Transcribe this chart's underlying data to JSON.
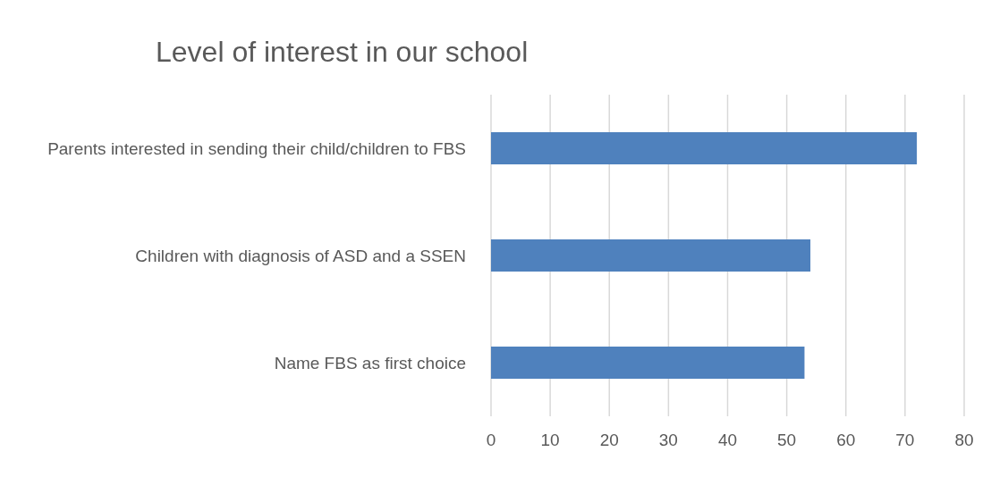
{
  "chart_data": {
    "type": "bar",
    "orientation": "horizontal",
    "title": "Level of interest in our school",
    "categories": [
      "Parents interested in sending their child/children to FBS",
      "Children with diagnosis of ASD and a SSEN",
      "Name FBS as first choice"
    ],
    "values": [
      72,
      54,
      53
    ],
    "color": "#4f81bd",
    "xlim": [
      0,
      80
    ],
    "xticks": [
      0,
      10,
      20,
      30,
      40,
      50,
      60,
      70,
      80
    ],
    "grid": "x"
  }
}
